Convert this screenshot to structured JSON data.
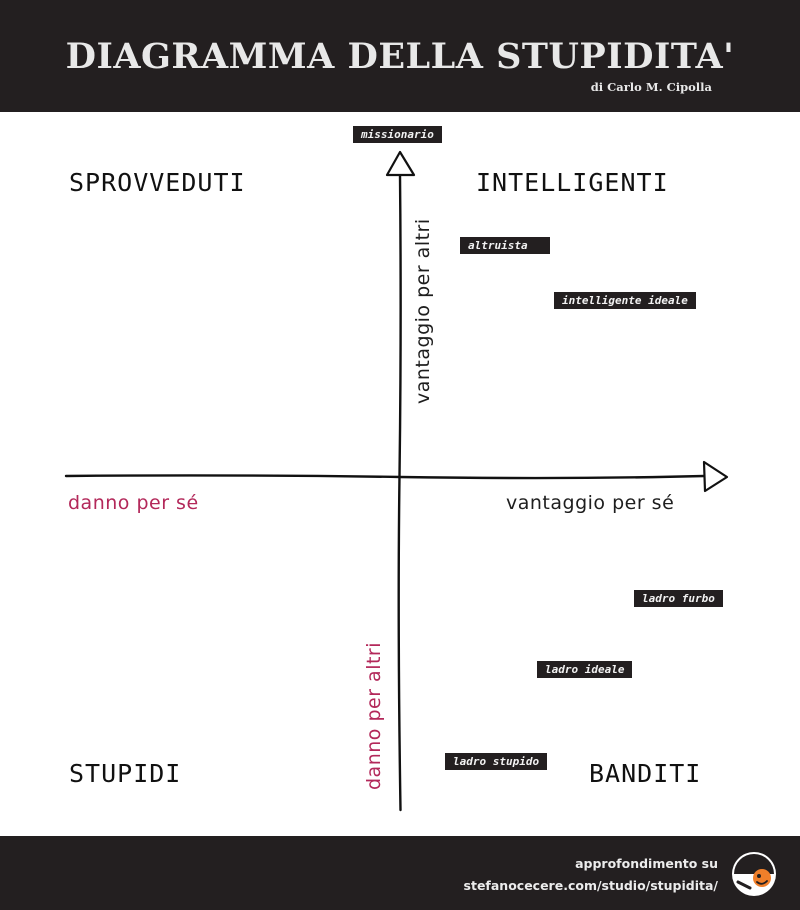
{
  "header": {
    "title": "DIAGRAMMA DELLA STUPIDITA'",
    "subtitle": "di Carlo M. Cipolla"
  },
  "quadrants": {
    "top_left": "SPROVVEDUTI",
    "top_right": "INTELLIGENTI",
    "bottom_left": "STUPIDI",
    "bottom_right": "BANDITI"
  },
  "axes": {
    "x_positive": "vantaggio per sé",
    "x_negative": "danno per sé",
    "y_positive": "vantaggio per altri",
    "y_negative": "danno per altri"
  },
  "tags": {
    "missionario": "missionario",
    "altruista": "altruista",
    "intelligente_ideale": "intelligente ideale",
    "ladro_furbo": "ladro furbo",
    "ladro_ideale": "ladro ideale",
    "ladro_stupido": "ladro stupido"
  },
  "footer": {
    "line1": "approfondimento su",
    "line2": "stefanocecere.com/studio/stupidita/"
  },
  "colors": {
    "dark": "#231f20",
    "negative_label": "#b3285a",
    "logo_accent": "#f07f2a"
  }
}
